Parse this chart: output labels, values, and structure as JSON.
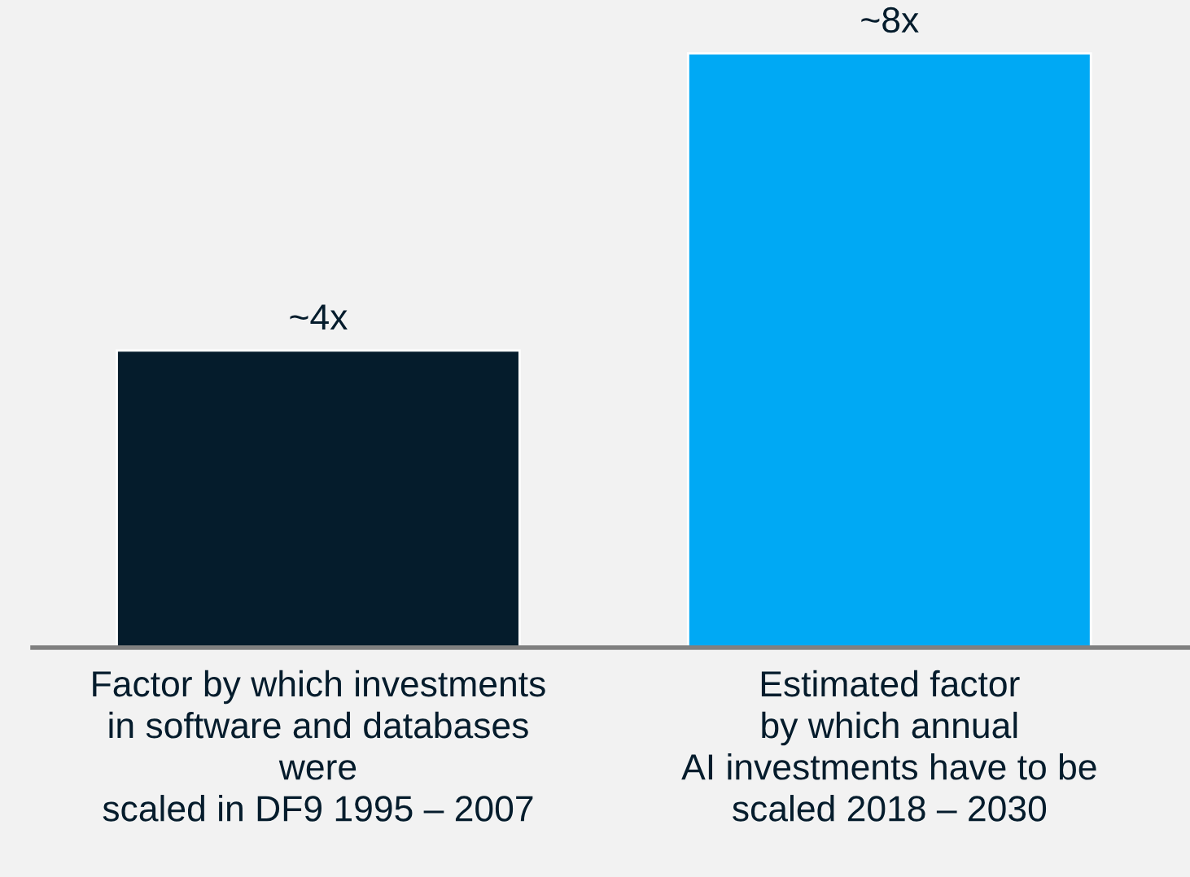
{
  "chart_data": {
    "type": "bar",
    "categories": [
      "Factor by which investments\nin software and databases\nwere\nscaled in DF9 1995 – 2007",
      "Estimated factor\nby which annual\nAI investments have to be\nscaled 2018 – 2030"
    ],
    "values": [
      4,
      8
    ],
    "colors": [
      "#051c2c",
      "#00a9f4"
    ],
    "value_labels": [
      "~4x",
      "~8x"
    ],
    "tick_labels": "x"
  }
}
